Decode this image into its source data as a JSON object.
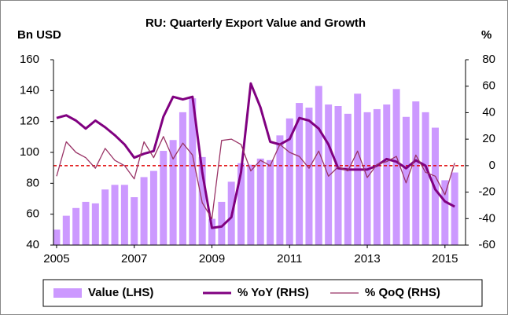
{
  "chart_data": {
    "type": "combo",
    "title": "RU: Quarterly Export Value and Growth",
    "ylabel": "Bn USD",
    "y2label": "%",
    "x": [
      2005,
      2005.25,
      2005.5,
      2005.75,
      2006,
      2006.25,
      2006.5,
      2006.75,
      2007,
      2007.25,
      2007.5,
      2007.75,
      2008,
      2008.25,
      2008.5,
      2008.75,
      2009,
      2009.25,
      2009.5,
      2009.75,
      2010,
      2010.25,
      2010.5,
      2010.75,
      2011,
      2011.25,
      2011.5,
      2011.75,
      2012,
      2012.25,
      2012.5,
      2012.75,
      2013,
      2013.25,
      2013.5,
      2013.75,
      2014,
      2014.25,
      2014.5,
      2014.75,
      2015,
      2015.25
    ],
    "xlim": [
      2004.92,
      2015.53
    ],
    "xticks": [
      2005,
      2007,
      2009,
      2011,
      2013,
      2015
    ],
    "ylim": [
      40,
      160
    ],
    "yticks": [
      40,
      60,
      80,
      100,
      120,
      140,
      160
    ],
    "y2lim": [
      -60,
      80
    ],
    "y2ticks": [
      -60,
      -40,
      -20,
      0,
      20,
      40,
      60,
      80
    ],
    "reference_line": {
      "value": 0,
      "axis": "y2",
      "color": "#e00000"
    },
    "legend": "bottom",
    "series": [
      {
        "name": "Value (LHS)",
        "type": "bar",
        "color": "#cc99ff",
        "values": [
          50,
          59,
          64,
          68,
          67,
          76,
          79,
          79,
          71,
          84,
          88,
          101,
          108,
          126,
          135,
          97,
          57,
          68,
          81,
          93,
          92,
          96,
          95,
          111,
          122,
          132,
          129,
          143,
          131,
          130,
          125,
          138,
          126,
          128,
          131,
          141,
          123,
          133,
          126,
          116,
          82,
          87
        ]
      },
      {
        "name": "% YoY (RHS)",
        "type": "line",
        "axis": "y2",
        "color": "#800080",
        "width": 3,
        "values": [
          36,
          38,
          34,
          28,
          34,
          29,
          23,
          16,
          6,
          9,
          11,
          37,
          52,
          50,
          52,
          -5,
          -47,
          -46,
          -39,
          -5,
          62,
          44,
          18,
          16,
          20,
          36,
          34,
          28,
          16,
          -2,
          -3,
          -3,
          -3,
          0,
          5,
          3,
          -2,
          4,
          0,
          -18,
          -27,
          -31
        ]
      },
      {
        "name": "% QoQ (RHS)",
        "type": "line",
        "axis": "y2",
        "color": "#993366",
        "width": 1.3,
        "values": [
          -8,
          18,
          10,
          6,
          -2,
          13,
          4,
          0,
          -10,
          18,
          6,
          22,
          5,
          17,
          8,
          -28,
          -40,
          19,
          20,
          16,
          -4,
          4,
          0,
          16,
          10,
          7,
          -2,
          11,
          -8,
          -1,
          -4,
          11,
          -9,
          1,
          3,
          7,
          -13,
          8,
          -5,
          -8,
          -22,
          2
        ]
      }
    ]
  }
}
